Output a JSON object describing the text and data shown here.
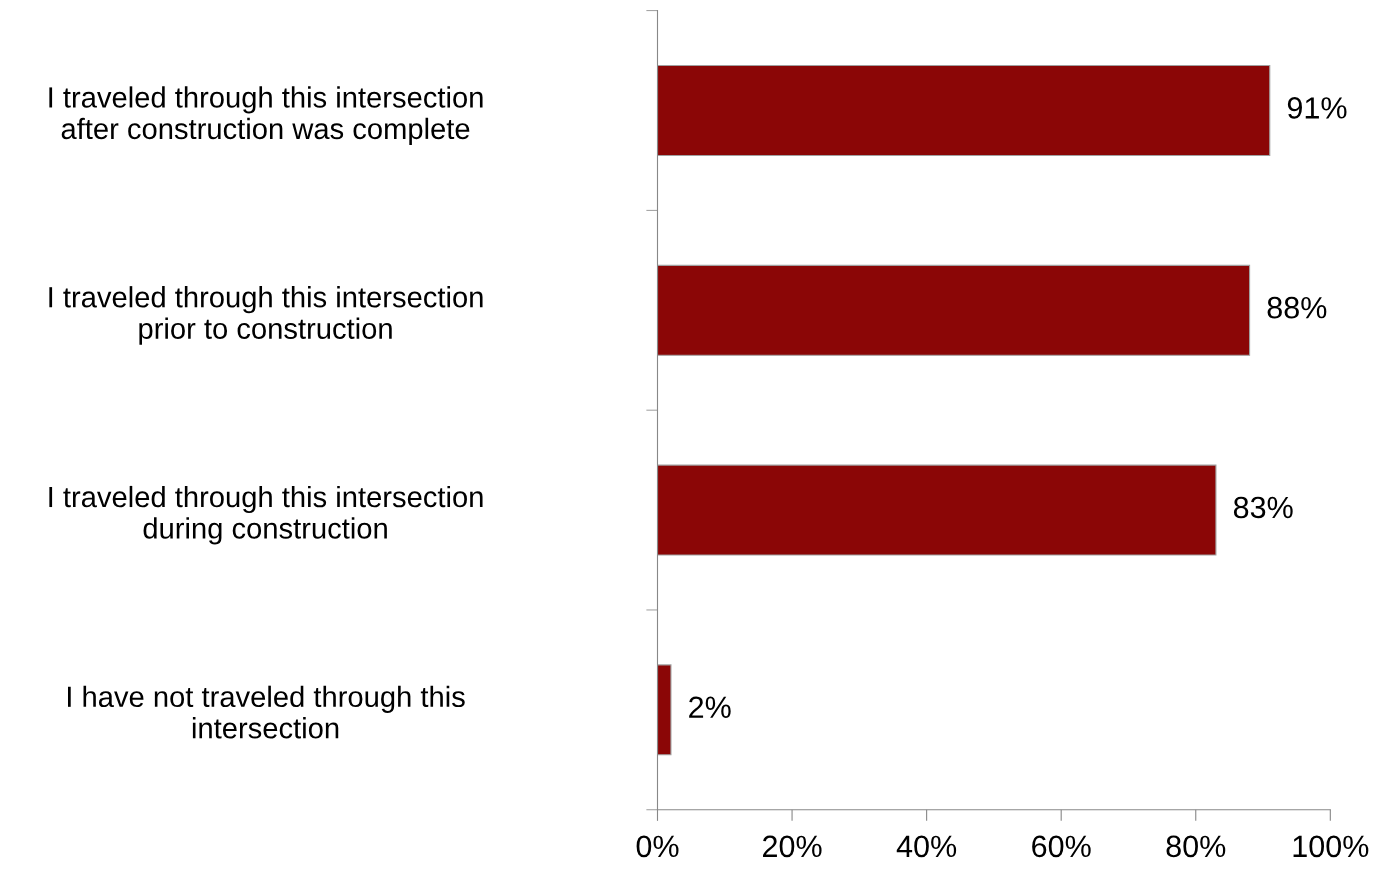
{
  "chart_data": {
    "type": "bar",
    "orientation": "horizontal",
    "categories": [
      "I traveled through this intersection\nafter construction was complete",
      "I traveled through this intersection\nprior to construction",
      "I traveled through this intersection\nduring construction",
      "I have not traveled through this\nintersection"
    ],
    "values": [
      91,
      88,
      83,
      2
    ],
    "value_labels": [
      "91%",
      "88%",
      "83%",
      "2%"
    ],
    "color": "#8b0606",
    "xlim": [
      0,
      100
    ],
    "xticks": [
      {
        "value": 0,
        "label": "0%"
      },
      {
        "value": 20,
        "label": "20%"
      },
      {
        "value": 40,
        "label": "40%"
      },
      {
        "value": 60,
        "label": "60%"
      },
      {
        "value": 80,
        "label": "80%"
      },
      {
        "value": 100,
        "label": "100%"
      }
    ]
  }
}
